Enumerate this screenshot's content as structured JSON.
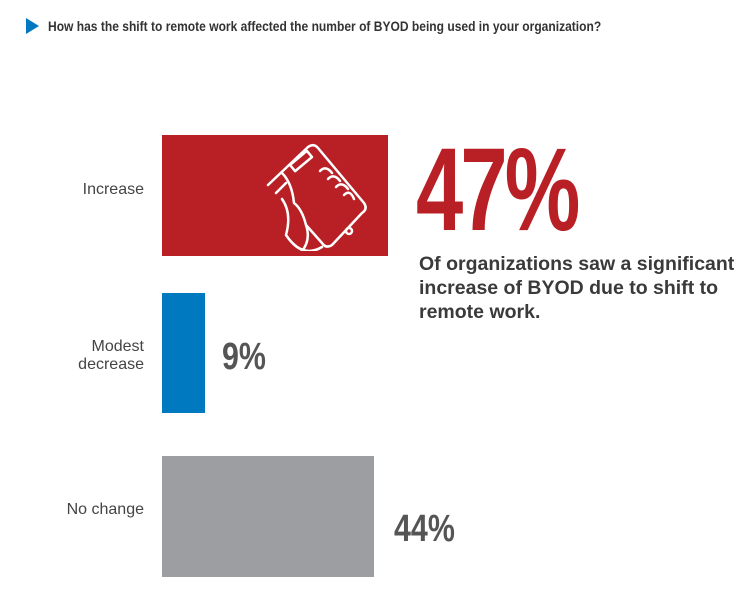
{
  "title": "How has the shift to remote work affected the number of BYOD being used in your organization?",
  "colors": {
    "accent": "#0079c1",
    "increase": "#b82025",
    "modest_decrease": "#0079c1",
    "no_change": "#9d9ea2"
  },
  "callout": {
    "value": "47%",
    "text": "Of organizations saw a significant increase of BYOD due to shift to remote work.",
    "icon": "hand-holding-phone-icon"
  },
  "chart_data": {
    "type": "bar",
    "orientation": "horizontal",
    "title": "How has the shift to remote work affected the number of BYOD being used in your organization?",
    "categories": [
      "Increase",
      "Modest decrease",
      "No change"
    ],
    "values": [
      47,
      9,
      44
    ],
    "labels": [
      "47%",
      "9%",
      "44%"
    ],
    "unit": "%",
    "grid": false
  }
}
